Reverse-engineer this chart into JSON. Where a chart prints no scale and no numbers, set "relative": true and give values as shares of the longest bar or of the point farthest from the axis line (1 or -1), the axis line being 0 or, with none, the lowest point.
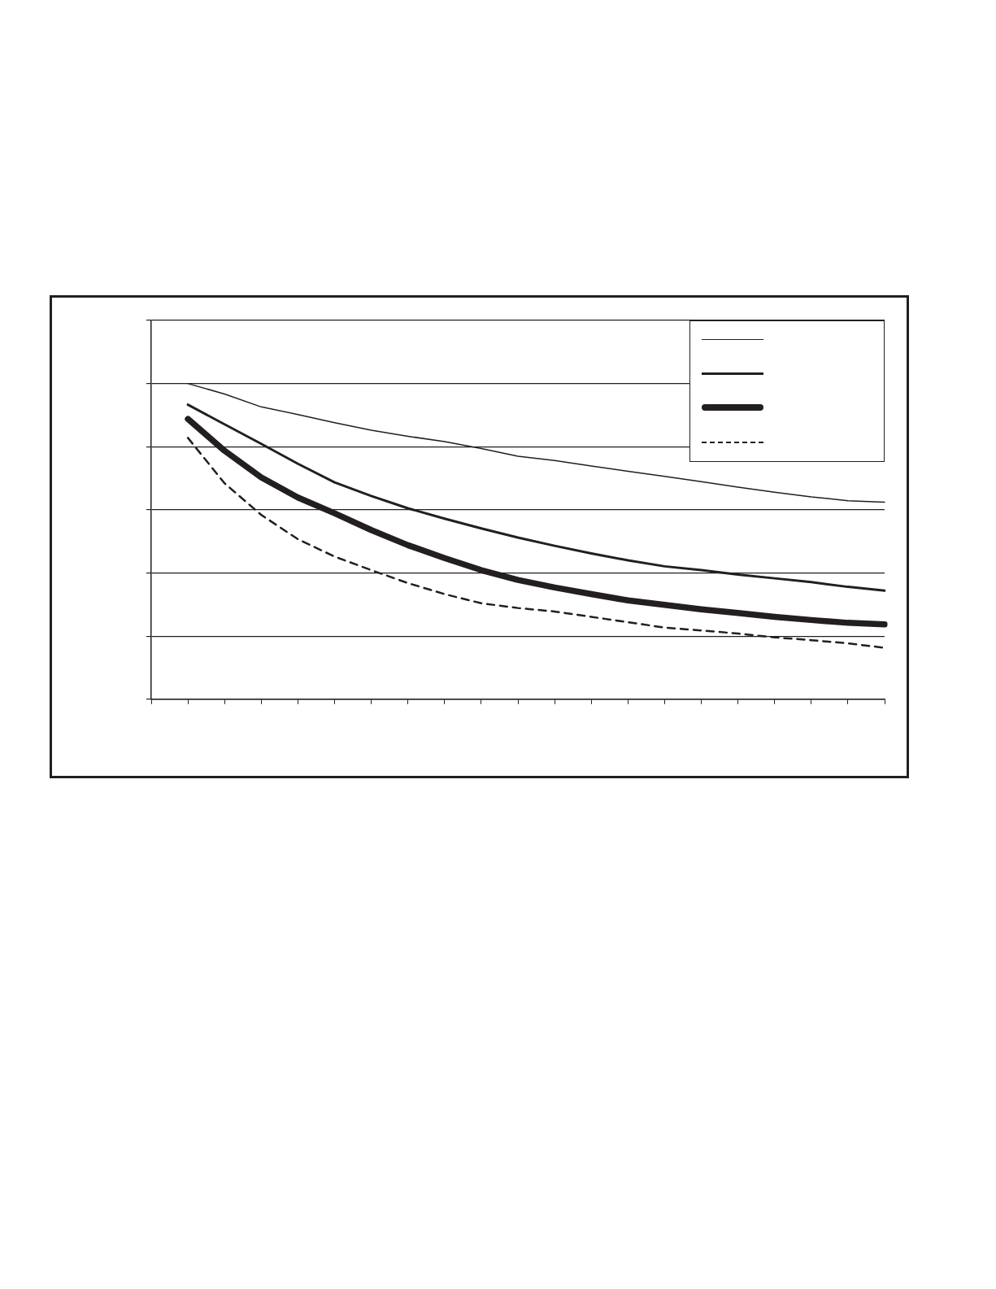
{
  "chart_data": {
    "type": "line",
    "relative": true,
    "grid": "y",
    "categories": [
      null,
      null,
      null,
      null,
      null,
      null,
      null,
      null,
      null,
      null,
      null,
      null,
      null,
      null,
      null,
      null,
      null,
      null,
      null,
      null,
      null
    ],
    "series": [
      {
        "color": "#231f20",
        "values": [
          null,
          1.0,
          0.967,
          0.926,
          0.902,
          0.876,
          0.852,
          0.833,
          0.816,
          0.794,
          0.77,
          0.756,
          0.739,
          0.722,
          0.706,
          0.689,
          0.672,
          0.656,
          0.641,
          0.629,
          0.624
        ]
      },
      {
        "color": "#231f20",
        "values": [
          null,
          0.933,
          0.871,
          0.809,
          0.746,
          0.687,
          0.644,
          0.605,
          0.572,
          0.541,
          0.512,
          0.486,
          0.462,
          0.44,
          0.421,
          0.409,
          0.395,
          0.383,
          0.371,
          0.356,
          0.344
        ]
      },
      {
        "color": "#231f20",
        "values": [
          null,
          0.888,
          0.787,
          0.703,
          0.639,
          0.589,
          0.536,
          0.488,
          0.447,
          0.409,
          0.378,
          0.354,
          0.333,
          0.313,
          0.299,
          0.285,
          0.273,
          0.261,
          0.251,
          0.242,
          0.237
        ]
      },
      {
        "color": "#231f20",
        "line_style": "dashed",
        "values": [
          null,
          0.828,
          0.684,
          0.584,
          0.507,
          0.452,
          0.409,
          0.368,
          0.333,
          0.304,
          0.289,
          0.278,
          0.261,
          0.244,
          0.227,
          0.218,
          0.208,
          0.196,
          0.187,
          0.177,
          0.163
        ]
      }
    ]
  }
}
